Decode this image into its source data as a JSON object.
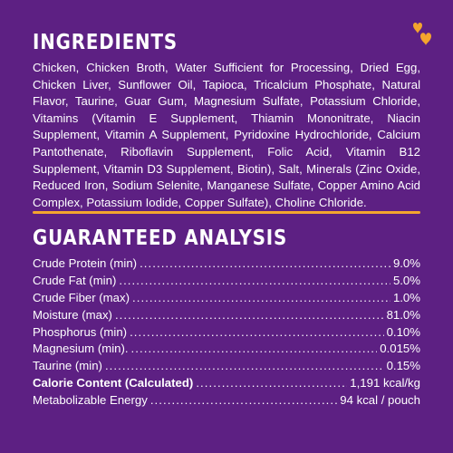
{
  "colors": {
    "background": "#5d2083",
    "accent": "#f4a52e",
    "text": "#ffffff"
  },
  "decoration": {
    "icon": "hearts-icon"
  },
  "ingredients": {
    "heading": "INGREDIENTS",
    "text": "Chicken, Chicken Broth, Water Sufficient for Processing, Dried Egg, Chicken Liver, Sunflower Oil, Tapioca, Tricalcium Phosphate, Natural Flavor, Taurine, Guar Gum, Magnesium Sulfate, Potassium Chloride, Vitamins (Vitamin E Supplement, Thiamin Mononitrate, Niacin Supplement, Vitamin A Supplement, Pyridoxine Hydrochloride, Calcium Pantothenate, Riboflavin Supplement, Folic Acid, Vitamin B12 Supplement, Vitamin D3 Supplement, Biotin), Salt, Minerals (Zinc Oxide, Reduced Iron, Sodium Selenite, Manganese Sulfate, Copper Amino Acid Complex, Potassium Iodide, Copper Sulfate), Choline Chloride."
  },
  "analysis": {
    "heading": "GUARANTEED ANALYSIS",
    "rows": [
      {
        "label": "Crude Protein (min)",
        "value": "9.0%"
      },
      {
        "label": "Crude Fat (min)",
        "value": "5.0%"
      },
      {
        "label": "Crude Fiber (max)",
        "value": "1.0%"
      },
      {
        "label": "Moisture (max)",
        "value": "81.0%"
      },
      {
        "label": "Phosphorus (min)",
        "value": "0.10%"
      },
      {
        "label": "Magnesium (min).",
        "value": "0.015%"
      },
      {
        "label": "Taurine (min)",
        "value": "0.15%"
      }
    ],
    "calorie": [
      {
        "label": "Calorie Content (Calculated)",
        "value": "1,191 kcal/kg"
      },
      {
        "label": "Metabolizable Energy",
        "value": "94 kcal / pouch"
      }
    ]
  }
}
